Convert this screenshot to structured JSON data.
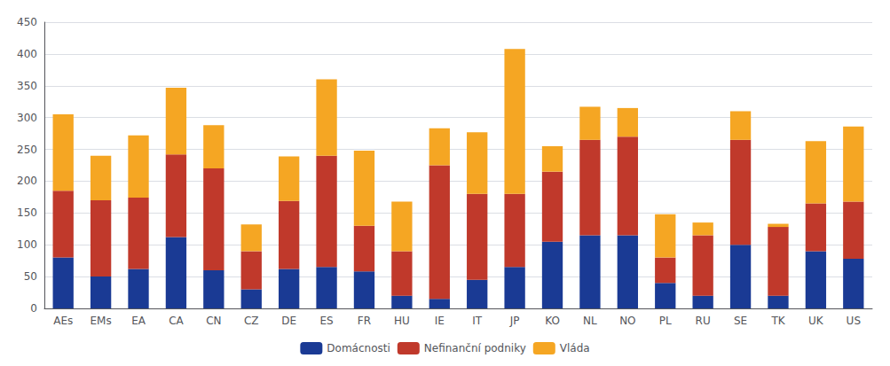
{
  "chart_data": {
    "type": "bar",
    "stacked": true,
    "categories": [
      "AEs",
      "EMs",
      "EA",
      "CA",
      "CN",
      "CZ",
      "DE",
      "ES",
      "FR",
      "HU",
      "IE",
      "IT",
      "JP",
      "KO",
      "NL",
      "NO",
      "PL",
      "RU",
      "SE",
      "TK",
      "UK",
      "US"
    ],
    "series": [
      {
        "name": "Domácnosti",
        "color": "#1a3a94",
        "values": [
          80,
          50,
          62,
          112,
          60,
          30,
          62,
          65,
          58,
          20,
          15,
          45,
          65,
          105,
          115,
          115,
          40,
          20,
          100,
          20,
          90,
          78
        ]
      },
      {
        "name": "Nefinanční podniky",
        "color": "#c0392b",
        "values": [
          105,
          120,
          112,
          130,
          160,
          60,
          107,
          175,
          72,
          70,
          210,
          135,
          115,
          110,
          150,
          155,
          40,
          95,
          165,
          108,
          75,
          90
        ]
      },
      {
        "name": "Vláda",
        "color": "#f5a623",
        "values": [
          120,
          70,
          98,
          105,
          68,
          42,
          70,
          120,
          118,
          78,
          58,
          97,
          228,
          40,
          52,
          45,
          68,
          20,
          45,
          5,
          98,
          118
        ]
      }
    ],
    "ylim": [
      0,
      450
    ],
    "yticks": [
      0,
      50,
      100,
      150,
      200,
      250,
      300,
      350,
      400,
      450
    ],
    "grid": true,
    "legend": "bottom"
  }
}
